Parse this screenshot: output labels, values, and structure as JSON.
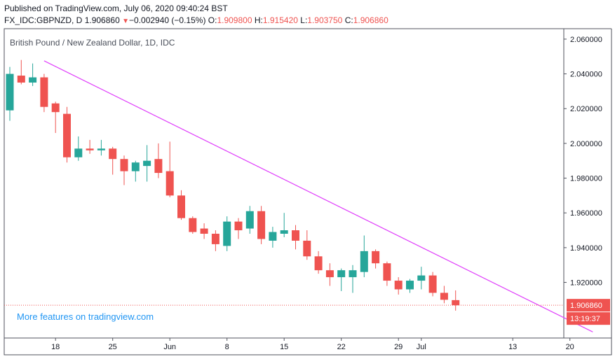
{
  "header": {
    "published": "Published on TradingView.com, July 06, 2020 09:40:24 BST",
    "symbol": "FX_IDC:GBPNZD, D",
    "last": "1.906860",
    "change": "−0.002940 (−0.15%)",
    "o_label": "O:",
    "o_value": "1.909800",
    "h_label": "H:",
    "h_value": "1.915420",
    "l_label": "L:",
    "l_value": "1.903750",
    "c_label": "C:",
    "c_value": "1.906860"
  },
  "promo_text": "More features on tradingview.com",
  "colors": {
    "up": "#26a69a",
    "down": "#ef5350",
    "trendline": "#e040fb",
    "price_badge": "#ef5350",
    "timer_badge": "#ef5350"
  },
  "chart_data": {
    "type": "candlestick",
    "title": "British Pound / New Zealand Dollar, 1D, IDC",
    "ylim": [
      1.888,
      2.066
    ],
    "y_ticks": [
      "2.060000",
      "2.040000",
      "2.020000",
      "2.000000",
      "1.980000",
      "1.960000",
      "1.940000",
      "1.920000"
    ],
    "x_tick_labels": [
      "18",
      "25",
      "Jun",
      "8",
      "15",
      "22",
      "29",
      "Jul",
      "13",
      "20"
    ],
    "grid": false,
    "last_price_label": "1.906860",
    "last_price": 1.90686,
    "countdown": "13:19:37",
    "trendline": {
      "from": [
        "2020-05-15",
        2.0475
      ],
      "to": [
        "2020-07-22",
        1.8915
      ]
    },
    "candles": [
      {
        "d": "2020-05-12",
        "o": 2.019,
        "h": 2.044,
        "l": 2.013,
        "c": 2.04
      },
      {
        "d": "2020-05-13",
        "o": 2.039,
        "h": 2.048,
        "l": 2.034,
        "c": 2.035
      },
      {
        "d": "2020-05-14",
        "o": 2.035,
        "h": 2.046,
        "l": 2.033,
        "c": 2.038
      },
      {
        "d": "2020-05-15",
        "o": 2.038,
        "h": 2.04,
        "l": 2.018,
        "c": 2.021
      },
      {
        "d": "2020-05-18",
        "o": 2.023,
        "h": 2.024,
        "l": 2.006,
        "c": 2.018
      },
      {
        "d": "2020-05-19",
        "o": 2.017,
        "h": 2.021,
        "l": 1.989,
        "c": 1.992
      },
      {
        "d": "2020-05-20",
        "o": 1.992,
        "h": 2.004,
        "l": 1.99,
        "c": 1.997
      },
      {
        "d": "2020-05-21",
        "o": 1.997,
        "h": 2.002,
        "l": 1.994,
        "c": 1.996
      },
      {
        "d": "2020-05-22",
        "o": 1.996,
        "h": 2.002,
        "l": 1.993,
        "c": 1.997
      },
      {
        "d": "2020-05-25",
        "o": 1.997,
        "h": 1.998,
        "l": 1.982,
        "c": 1.991
      },
      {
        "d": "2020-05-26",
        "o": 1.991,
        "h": 1.993,
        "l": 1.976,
        "c": 1.984
      },
      {
        "d": "2020-05-27",
        "o": 1.984,
        "h": 1.99,
        "l": 1.978,
        "c": 1.989
      },
      {
        "d": "2020-05-28",
        "o": 1.987,
        "h": 1.999,
        "l": 1.978,
        "c": 1.99
      },
      {
        "d": "2020-05-29",
        "o": 1.991,
        "h": 2.0,
        "l": 1.98,
        "c": 1.983
      },
      {
        "d": "2020-06-01",
        "o": 1.984,
        "h": 2.001,
        "l": 1.969,
        "c": 1.97
      },
      {
        "d": "2020-06-02",
        "o": 1.97,
        "h": 1.973,
        "l": 1.956,
        "c": 1.957
      },
      {
        "d": "2020-06-03",
        "o": 1.957,
        "h": 1.958,
        "l": 1.948,
        "c": 1.949
      },
      {
        "d": "2020-06-04",
        "o": 1.951,
        "h": 1.954,
        "l": 1.945,
        "c": 1.948
      },
      {
        "d": "2020-06-05",
        "o": 1.948,
        "h": 1.95,
        "l": 1.938,
        "c": 1.942
      },
      {
        "d": "2020-06-08",
        "o": 1.941,
        "h": 1.958,
        "l": 1.938,
        "c": 1.955
      },
      {
        "d": "2020-06-09",
        "o": 1.955,
        "h": 1.957,
        "l": 1.945,
        "c": 1.95
      },
      {
        "d": "2020-06-10",
        "o": 1.951,
        "h": 1.964,
        "l": 1.948,
        "c": 1.961
      },
      {
        "d": "2020-06-11",
        "o": 1.961,
        "h": 1.964,
        "l": 1.942,
        "c": 1.945
      },
      {
        "d": "2020-06-12",
        "o": 1.944,
        "h": 1.952,
        "l": 1.94,
        "c": 1.949
      },
      {
        "d": "2020-06-15",
        "o": 1.948,
        "h": 1.96,
        "l": 1.946,
        "c": 1.95
      },
      {
        "d": "2020-06-16",
        "o": 1.95,
        "h": 1.953,
        "l": 1.939,
        "c": 1.944
      },
      {
        "d": "2020-06-17",
        "o": 1.944,
        "h": 1.95,
        "l": 1.933,
        "c": 1.935
      },
      {
        "d": "2020-06-18",
        "o": 1.935,
        "h": 1.938,
        "l": 1.925,
        "c": 1.927
      },
      {
        "d": "2020-06-19",
        "o": 1.927,
        "h": 1.931,
        "l": 1.918,
        "c": 1.923
      },
      {
        "d": "2020-06-22",
        "o": 1.923,
        "h": 1.928,
        "l": 1.915,
        "c": 1.927
      },
      {
        "d": "2020-06-23",
        "o": 1.923,
        "h": 1.93,
        "l": 1.914,
        "c": 1.927
      },
      {
        "d": "2020-06-24",
        "o": 1.926,
        "h": 1.947,
        "l": 1.923,
        "c": 1.938
      },
      {
        "d": "2020-06-25",
        "o": 1.938,
        "h": 1.939,
        "l": 1.928,
        "c": 1.931
      },
      {
        "d": "2020-06-26",
        "o": 1.931,
        "h": 1.932,
        "l": 1.918,
        "c": 1.921
      },
      {
        "d": "2020-06-29",
        "o": 1.921,
        "h": 1.923,
        "l": 1.913,
        "c": 1.916
      },
      {
        "d": "2020-06-30",
        "o": 1.916,
        "h": 1.922,
        "l": 1.914,
        "c": 1.921
      },
      {
        "d": "2020-07-01",
        "o": 1.921,
        "h": 1.929,
        "l": 1.916,
        "c": 1.924
      },
      {
        "d": "2020-07-02",
        "o": 1.924,
        "h": 1.926,
        "l": 1.912,
        "c": 1.914
      },
      {
        "d": "2020-07-03",
        "o": 1.914,
        "h": 1.918,
        "l": 1.908,
        "c": 1.91
      },
      {
        "d": "2020-07-06",
        "o": 1.9098,
        "h": 1.9154,
        "l": 1.90375,
        "c": 1.90686
      }
    ]
  }
}
